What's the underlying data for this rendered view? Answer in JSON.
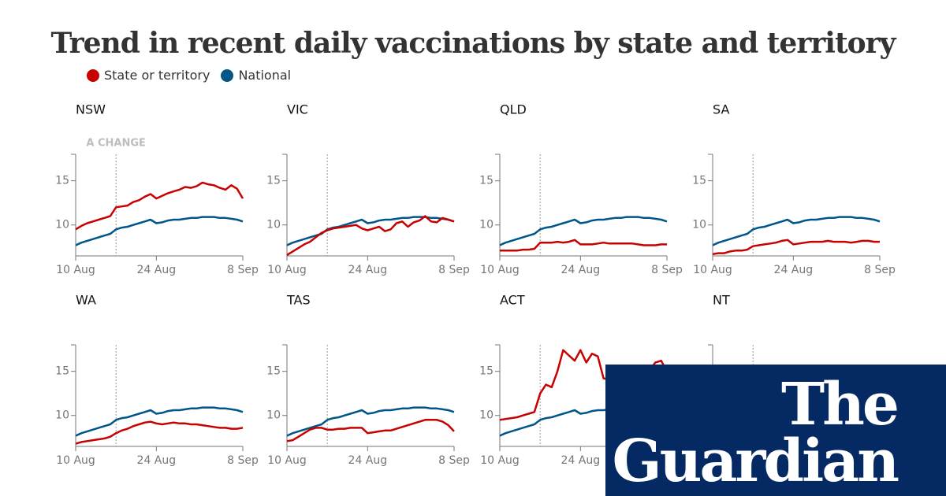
{
  "title": "Trend in recent daily vaccinations by state and territory",
  "legend": [
    {
      "label": "State or territory",
      "color": "#c70000"
    },
    {
      "label": "National",
      "color": "#005689"
    }
  ],
  "colors": {
    "state": "#c70000",
    "national": "#005689",
    "axis": "#767676",
    "logo_bg": "#052962"
  },
  "annotation": {
    "text": "A CHANGE",
    "day": 7
  },
  "logo": {
    "line1": "The",
    "line2": "Guardian"
  },
  "chart_data": {
    "type": "line",
    "x_start": "10 Aug",
    "x_end": "8 Sep",
    "x_ticks": [
      {
        "day": 0,
        "label": "10 Aug"
      },
      {
        "day": 14,
        "label": "24 Aug"
      },
      {
        "day": 29,
        "label": "8 Sep"
      }
    ],
    "ylim": [
      6.5,
      18
    ],
    "y_ticks": [
      10,
      15
    ],
    "vline_day": 7,
    "national": [
      7.7,
      8.0,
      8.2,
      8.4,
      8.6,
      8.8,
      9.0,
      9.5,
      9.7,
      9.8,
      10.0,
      10.2,
      10.4,
      10.6,
      10.2,
      10.3,
      10.5,
      10.6,
      10.6,
      10.7,
      10.8,
      10.8,
      10.9,
      10.9,
      10.9,
      10.8,
      10.8,
      10.7,
      10.6,
      10.4
    ],
    "panels": [
      {
        "name": "NSW",
        "values": [
          9.5,
          9.9,
          10.2,
          10.4,
          10.6,
          10.8,
          11.0,
          12.0,
          12.1,
          12.2,
          12.6,
          12.8,
          13.2,
          13.5,
          13.0,
          13.3,
          13.6,
          13.8,
          14.0,
          14.3,
          14.2,
          14.4,
          14.8,
          14.6,
          14.5,
          14.2,
          14.0,
          14.5,
          14.1,
          13.0
        ]
      },
      {
        "name": "VIC",
        "values": [
          6.6,
          7.0,
          7.4,
          7.8,
          8.1,
          8.6,
          9.1,
          9.4,
          9.6,
          9.7,
          9.8,
          9.9,
          10.0,
          9.6,
          9.4,
          9.6,
          9.8,
          9.3,
          9.5,
          10.2,
          10.4,
          9.8,
          10.3,
          10.5,
          11.0,
          10.4,
          10.3,
          10.8,
          10.6,
          10.4
        ]
      },
      {
        "name": "QLD",
        "values": [
          7.1,
          7.1,
          7.1,
          7.1,
          7.2,
          7.2,
          7.3,
          8.0,
          8.0,
          8.0,
          8.1,
          8.0,
          8.1,
          8.3,
          7.8,
          7.8,
          7.8,
          7.9,
          8.0,
          7.9,
          7.9,
          7.9,
          7.9,
          7.9,
          7.8,
          7.7,
          7.7,
          7.7,
          7.8,
          7.8
        ]
      },
      {
        "name": "SA",
        "values": [
          6.7,
          6.8,
          6.8,
          7.0,
          7.1,
          7.1,
          7.2,
          7.6,
          7.7,
          7.8,
          7.9,
          8.0,
          8.2,
          8.3,
          7.8,
          7.9,
          8.0,
          8.1,
          8.1,
          8.1,
          8.2,
          8.1,
          8.1,
          8.1,
          8.0,
          8.1,
          8.2,
          8.2,
          8.1,
          8.1
        ]
      },
      {
        "name": "WA",
        "values": [
          6.8,
          7.0,
          7.1,
          7.2,
          7.3,
          7.4,
          7.6,
          8.0,
          8.3,
          8.5,
          8.8,
          9.0,
          9.2,
          9.3,
          9.1,
          9.0,
          9.1,
          9.2,
          9.1,
          9.1,
          9.0,
          9.0,
          8.9,
          8.8,
          8.7,
          8.6,
          8.6,
          8.5,
          8.5,
          8.6
        ]
      },
      {
        "name": "TAS",
        "values": [
          7.1,
          7.2,
          7.6,
          8.0,
          8.4,
          8.6,
          8.6,
          8.4,
          8.4,
          8.5,
          8.5,
          8.6,
          8.6,
          8.6,
          8.0,
          8.1,
          8.2,
          8.3,
          8.3,
          8.5,
          8.7,
          8.9,
          9.1,
          9.3,
          9.5,
          9.5,
          9.5,
          9.3,
          8.9,
          8.2
        ]
      },
      {
        "name": "ACT",
        "values": [
          9.5,
          9.6,
          9.7,
          9.8,
          10.0,
          10.2,
          10.4,
          12.5,
          13.5,
          13.2,
          15.0,
          17.4,
          16.8,
          16.2,
          17.4,
          16.0,
          17.0,
          16.7,
          14.2,
          14.1,
          14.2,
          12.5,
          14.8,
          15.0,
          13.8,
          14.5,
          15.2,
          16.0,
          16.2,
          15.0
        ]
      },
      {
        "name": "NT",
        "values": []
      }
    ]
  }
}
